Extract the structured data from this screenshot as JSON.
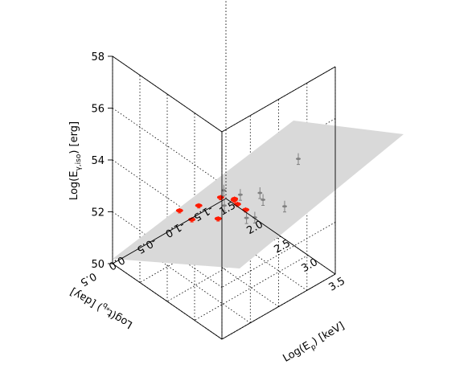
{
  "chart_data": {
    "type": "scatter",
    "projection": "3d",
    "title": "",
    "axes": {
      "x": {
        "label": "Log(Eₚ) [keV]",
        "label_main": "Log(E",
        "label_sub": "p",
        "label_rest": ") [keV]",
        "range": [
          1.5,
          3.5
        ],
        "ticks": [
          "1.5",
          "2.0",
          "2.5",
          "3.0",
          "3.5"
        ],
        "tick_values": [
          1.5,
          2.0,
          2.5,
          3.0,
          3.5
        ]
      },
      "y": {
        "label": "Log(tᵣ) [day]",
        "label_main": "Log(t",
        "label_sub": "*b",
        "label_rest": ") [day]",
        "range": [
          -1.5,
          0.5
        ],
        "ticks": [
          "-1.5",
          "-1.0",
          "-0.5",
          "0.0",
          "0.5"
        ],
        "tick_values": [
          -1.5,
          -1.0,
          -0.5,
          0.0,
          0.5
        ]
      },
      "z": {
        "label": "Log(Eγ) [erg]",
        "label_main": "Log(E",
        "label_sub": "γ,iso",
        "label_rest": ")  [erg]",
        "range": [
          50,
          58
        ],
        "ticks": [
          "50",
          "52",
          "54",
          "56",
          "58"
        ],
        "tick_values": [
          50,
          52,
          54,
          56,
          58
        ]
      }
    },
    "grid": true,
    "plane": {
      "color": "#d9d9d9",
      "description_equation": "fit plane"
    },
    "series": [
      {
        "color": "#ff1a00",
        "points": [
          {
            "x": 2.0,
            "y": -0.2,
            "z": 51.9
          },
          {
            "x": 2.12,
            "y": -0.3,
            "z": 51.6
          },
          {
            "x": 2.35,
            "y": -0.2,
            "z": 52.6
          },
          {
            "x": 2.55,
            "y": -0.35,
            "z": 52.2
          },
          {
            "x": 2.75,
            "y": -0.2,
            "z": 53.5
          },
          {
            "x": 2.85,
            "y": -0.35,
            "z": 53.4
          },
          {
            "x": 2.8,
            "y": -0.45,
            "z": 53.0
          },
          {
            "x": 2.95,
            "y": -0.45,
            "z": 53.0
          },
          {
            "x": 3.05,
            "y": -0.15,
            "z": 53.9
          }
        ]
      },
      {
        "color": "#808080",
        "points": [
          {
            "x": 2.3,
            "y": -0.7,
            "z": 51.9
          },
          {
            "x": 2.55,
            "y": -0.85,
            "z": 51.6
          },
          {
            "x": 2.65,
            "y": -0.9,
            "z": 51.7
          },
          {
            "x": 2.6,
            "y": -0.4,
            "z": 53.3
          },
          {
            "x": 2.8,
            "y": -0.5,
            "z": 53.3
          },
          {
            "x": 2.9,
            "y": -0.75,
            "z": 53.2
          },
          {
            "x": 2.8,
            "y": -0.9,
            "z": 52.6
          },
          {
            "x": 3.3,
            "y": -0.8,
            "z": 53.2
          },
          {
            "x": 3.55,
            "y": -0.8,
            "z": 55.4
          }
        ]
      }
    ]
  }
}
